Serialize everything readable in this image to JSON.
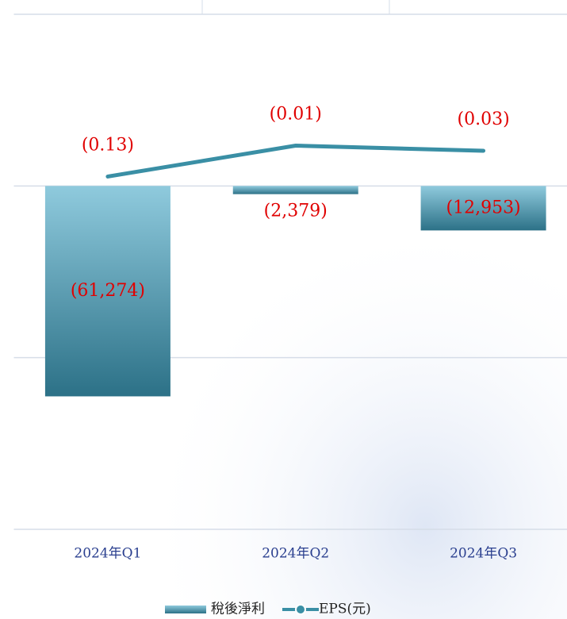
{
  "chart_data": {
    "type": "bar+line",
    "categories": [
      "2024年Q1",
      "2024年Q2",
      "2024年Q3"
    ],
    "series": [
      {
        "name": "稅後淨利",
        "type": "bar",
        "color": "#3f93aa",
        "values": [
          -61274,
          -2379,
          -12953
        ],
        "value_labels": [
          "(61,274)",
          "(2,379)",
          "(12,953)"
        ]
      },
      {
        "name": "EPS(元)",
        "type": "line",
        "axis": "y2",
        "color": "#3a8fa5",
        "values": [
          -0.13,
          -0.01,
          -0.03
        ],
        "value_labels": [
          "(0.13)",
          "(0.01)",
          "(0.03)"
        ]
      }
    ],
    "ylim": [
      -100000,
      50000
    ],
    "yticks": [
      -100000,
      -50000,
      0,
      50000
    ],
    "y2lim": [
      -1.5,
      0.5
    ],
    "grid": true,
    "legend": "bottom"
  }
}
